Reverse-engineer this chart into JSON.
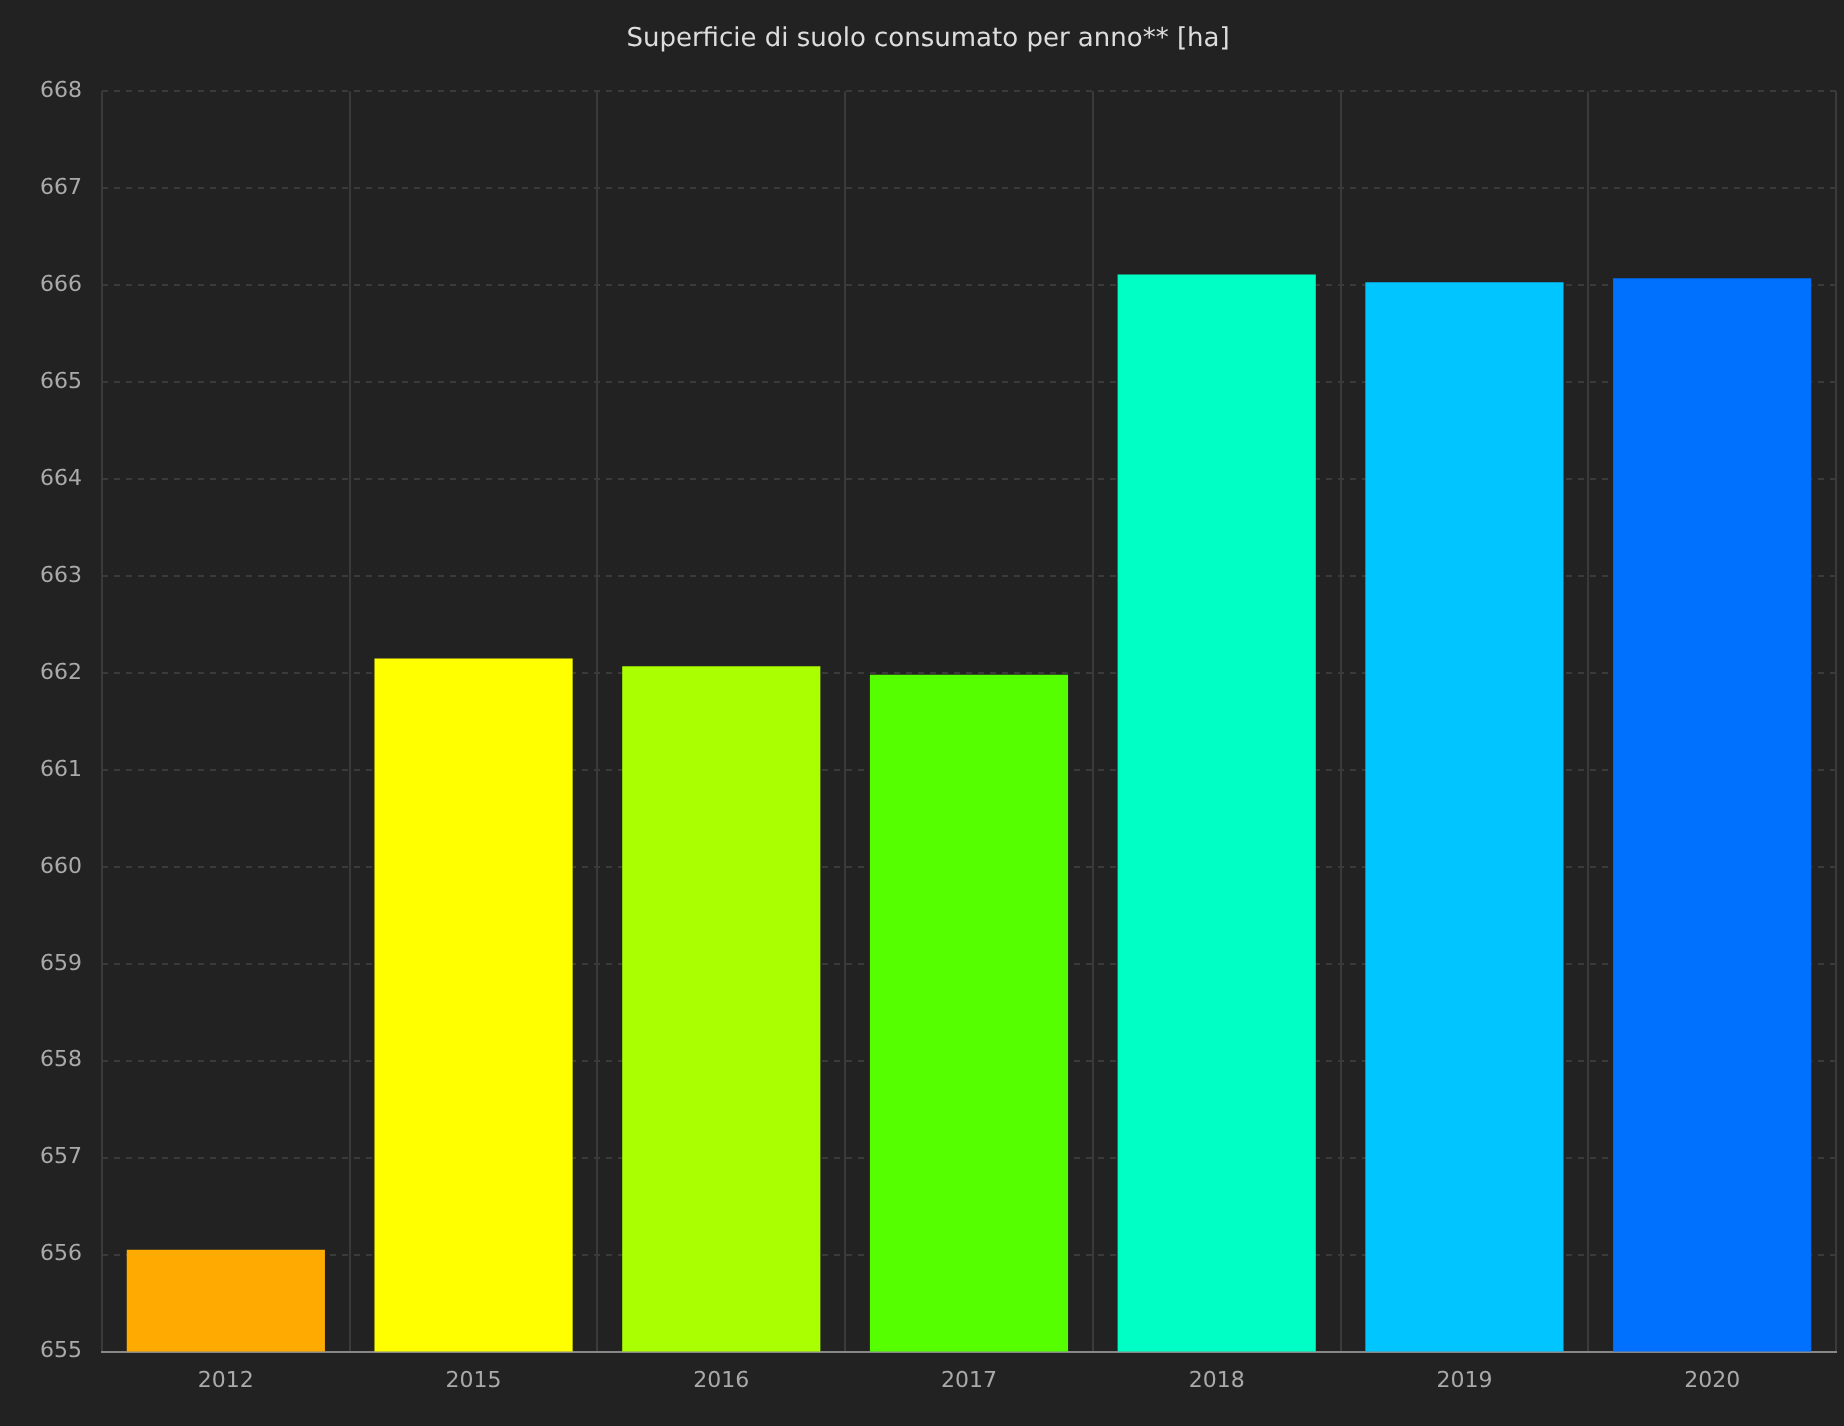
{
  "chart_data": {
    "type": "bar",
    "title": "Superficie di suolo consumato per anno** [ha]",
    "categories": [
      "2012",
      "2015",
      "2016",
      "2017",
      "2018",
      "2019",
      "2020"
    ],
    "values": [
      656.05,
      662.15,
      662.07,
      661.98,
      666.11,
      666.03,
      666.07
    ],
    "colors": [
      "#ffaa00",
      "#ffff00",
      "#aaff00",
      "#55ff00",
      "#00ffc5",
      "#00c5ff",
      "#0070ff"
    ],
    "ylim": [
      655,
      668
    ],
    "yticks": [
      655,
      656,
      657,
      658,
      659,
      660,
      661,
      662,
      663,
      664,
      665,
      666,
      667,
      668
    ],
    "grid": true,
    "legend": false
  }
}
